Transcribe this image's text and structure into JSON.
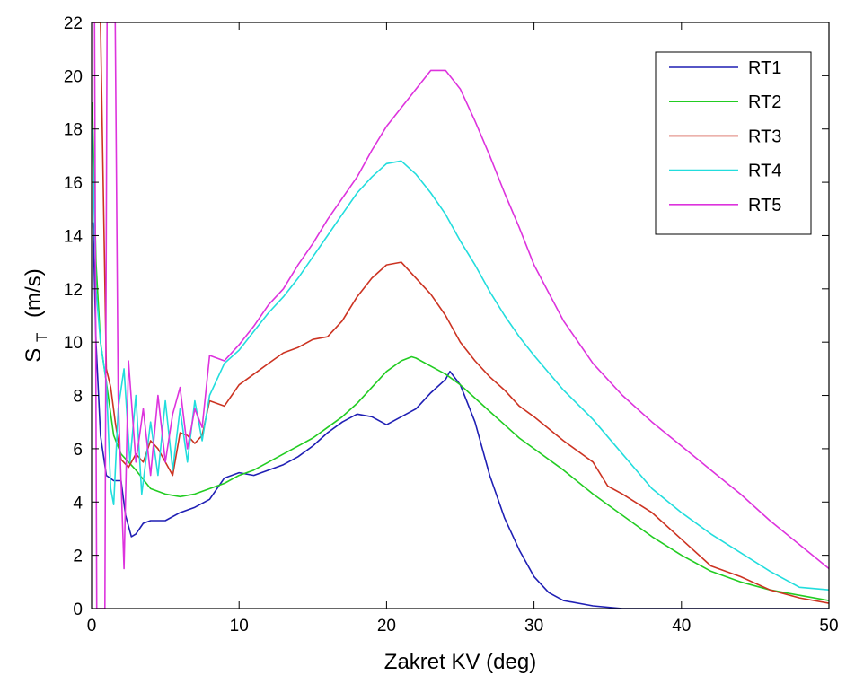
{
  "chart_data": {
    "type": "line",
    "xlabel": "Zakret KV (deg)",
    "ylabel_main": "S",
    "ylabel_sub": "T",
    "ylabel_unit": "(m/s)",
    "xlim": [
      0,
      50
    ],
    "ylim": [
      0,
      22
    ],
    "xticks": [
      0,
      10,
      20,
      30,
      40,
      50
    ],
    "yticks": [
      0,
      2,
      4,
      6,
      8,
      10,
      12,
      14,
      16,
      18,
      20,
      22
    ],
    "grid": false,
    "legend_position": "top-right",
    "series": [
      {
        "name": "RT1",
        "color": "#1f1fb4",
        "points": [
          [
            0.1,
            14.5
          ],
          [
            0.3,
            10
          ],
          [
            0.6,
            6.5
          ],
          [
            1,
            5
          ],
          [
            1.5,
            4.8
          ],
          [
            2,
            4.8
          ],
          [
            2.3,
            3.5
          ],
          [
            2.7,
            2.7
          ],
          [
            3,
            2.8
          ],
          [
            3.5,
            3.2
          ],
          [
            4,
            3.3
          ],
          [
            5,
            3.3
          ],
          [
            6,
            3.6
          ],
          [
            7,
            3.8
          ],
          [
            8,
            4.1
          ],
          [
            9,
            4.9
          ],
          [
            10,
            5.1
          ],
          [
            11,
            5.0
          ],
          [
            12,
            5.2
          ],
          [
            13,
            5.4
          ],
          [
            14,
            5.7
          ],
          [
            15,
            6.1
          ],
          [
            16,
            6.6
          ],
          [
            17,
            7.0
          ],
          [
            18,
            7.3
          ],
          [
            19,
            7.2
          ],
          [
            20,
            6.9
          ],
          [
            21,
            7.2
          ],
          [
            22,
            7.5
          ],
          [
            23,
            8.1
          ],
          [
            24,
            8.6
          ],
          [
            24.3,
            8.9
          ],
          [
            25,
            8.4
          ],
          [
            26,
            7.0
          ],
          [
            27,
            5.0
          ],
          [
            28,
            3.4
          ],
          [
            29,
            2.2
          ],
          [
            30,
            1.2
          ],
          [
            31,
            0.6
          ],
          [
            32,
            0.3
          ],
          [
            34,
            0.1
          ],
          [
            36,
            0.0
          ],
          [
            40,
            0.0
          ],
          [
            45,
            0.0
          ],
          [
            50,
            0.0
          ]
        ]
      },
      {
        "name": "RT2",
        "color": "#22cc22",
        "points": [
          [
            0.05,
            19
          ],
          [
            0.3,
            13
          ],
          [
            0.6,
            10
          ],
          [
            1,
            8.5
          ],
          [
            1.5,
            6.5
          ],
          [
            2,
            5.8
          ],
          [
            3,
            5.2
          ],
          [
            4,
            4.5
          ],
          [
            5,
            4.3
          ],
          [
            6,
            4.2
          ],
          [
            7,
            4.3
          ],
          [
            8,
            4.5
          ],
          [
            9,
            4.7
          ],
          [
            10,
            5.0
          ],
          [
            11,
            5.2
          ],
          [
            12,
            5.5
          ],
          [
            13,
            5.8
          ],
          [
            14,
            6.1
          ],
          [
            15,
            6.4
          ],
          [
            16,
            6.8
          ],
          [
            17,
            7.2
          ],
          [
            18,
            7.7
          ],
          [
            19,
            8.3
          ],
          [
            20,
            8.9
          ],
          [
            21,
            9.3
          ],
          [
            21.7,
            9.45
          ],
          [
            22,
            9.4
          ],
          [
            23,
            9.1
          ],
          [
            24,
            8.8
          ],
          [
            25,
            8.4
          ],
          [
            26,
            7.9
          ],
          [
            27,
            7.4
          ],
          [
            28,
            6.9
          ],
          [
            29,
            6.4
          ],
          [
            30,
            6.0
          ],
          [
            32,
            5.2
          ],
          [
            34,
            4.3
          ],
          [
            36,
            3.5
          ],
          [
            38,
            2.7
          ],
          [
            40,
            2.0
          ],
          [
            42,
            1.4
          ],
          [
            44,
            1.0
          ],
          [
            46,
            0.7
          ],
          [
            48,
            0.5
          ],
          [
            50,
            0.3
          ]
        ]
      },
      {
        "name": "RT3",
        "color": "#cc3322",
        "points": [
          [
            0.1,
            22
          ],
          [
            0.6,
            22
          ],
          [
            1,
            9
          ],
          [
            1.3,
            8.3
          ],
          [
            1.6,
            7.0
          ],
          [
            2,
            5.6
          ],
          [
            2.5,
            5.3
          ],
          [
            3,
            5.8
          ],
          [
            3.5,
            5.5
          ],
          [
            4,
            6.3
          ],
          [
            4.5,
            6.0
          ],
          [
            5,
            5.5
          ],
          [
            5.5,
            5.0
          ],
          [
            6,
            6.6
          ],
          [
            6.5,
            6.5
          ],
          [
            7,
            6.2
          ],
          [
            7.5,
            6.5
          ],
          [
            8,
            7.8
          ],
          [
            9,
            7.6
          ],
          [
            10,
            8.4
          ],
          [
            11,
            8.8
          ],
          [
            12,
            9.2
          ],
          [
            13,
            9.6
          ],
          [
            14,
            9.8
          ],
          [
            15,
            10.1
          ],
          [
            16,
            10.2
          ],
          [
            17,
            10.8
          ],
          [
            18,
            11.7
          ],
          [
            19,
            12.4
          ],
          [
            20,
            12.9
          ],
          [
            21,
            13.0
          ],
          [
            22,
            12.4
          ],
          [
            23,
            11.8
          ],
          [
            24,
            11.0
          ],
          [
            25,
            10.0
          ],
          [
            26,
            9.3
          ],
          [
            27,
            8.7
          ],
          [
            28,
            8.2
          ],
          [
            29,
            7.6
          ],
          [
            30,
            7.2
          ],
          [
            32,
            6.3
          ],
          [
            34,
            5.5
          ],
          [
            35,
            4.6
          ],
          [
            36,
            4.3
          ],
          [
            38,
            3.6
          ],
          [
            40,
            2.6
          ],
          [
            42,
            1.6
          ],
          [
            44,
            1.2
          ],
          [
            46,
            0.7
          ],
          [
            48,
            0.4
          ],
          [
            50,
            0.2
          ]
        ]
      },
      {
        "name": "RT4",
        "color": "#22dddd",
        "points": [
          [
            0.05,
            18
          ],
          [
            0.3,
            12
          ],
          [
            0.6,
            10
          ],
          [
            1,
            8.5
          ],
          [
            1.3,
            4.5
          ],
          [
            1.5,
            3.9
          ],
          [
            1.8,
            7.5
          ],
          [
            2.2,
            9.0
          ],
          [
            2.6,
            5.5
          ],
          [
            3,
            8.0
          ],
          [
            3.4,
            4.3
          ],
          [
            4,
            7.0
          ],
          [
            4.5,
            5.0
          ],
          [
            5,
            7.8
          ],
          [
            5.5,
            5.2
          ],
          [
            6,
            7.5
          ],
          [
            6.5,
            5.5
          ],
          [
            7,
            7.8
          ],
          [
            7.5,
            6.3
          ],
          [
            8,
            8.0
          ],
          [
            9,
            9.2
          ],
          [
            10,
            9.7
          ],
          [
            11,
            10.4
          ],
          [
            12,
            11.1
          ],
          [
            13,
            11.7
          ],
          [
            14,
            12.4
          ],
          [
            15,
            13.2
          ],
          [
            16,
            14.0
          ],
          [
            17,
            14.8
          ],
          [
            18,
            15.6
          ],
          [
            19,
            16.2
          ],
          [
            20,
            16.7
          ],
          [
            21,
            16.8
          ],
          [
            22,
            16.3
          ],
          [
            23,
            15.6
          ],
          [
            24,
            14.8
          ],
          [
            25,
            13.8
          ],
          [
            26,
            12.9
          ],
          [
            27,
            11.9
          ],
          [
            28,
            11.0
          ],
          [
            29,
            10.2
          ],
          [
            30,
            9.5
          ],
          [
            32,
            8.2
          ],
          [
            34,
            7.1
          ],
          [
            36,
            5.8
          ],
          [
            38,
            4.5
          ],
          [
            40,
            3.6
          ],
          [
            42,
            2.8
          ],
          [
            44,
            2.1
          ],
          [
            46,
            1.4
          ],
          [
            48,
            0.8
          ],
          [
            50,
            0.7
          ]
        ]
      },
      {
        "name": "RT5",
        "color": "#dd33dd",
        "points": [
          [
            0.05,
            22
          ],
          [
            0.2,
            22
          ],
          [
            0.35,
            0
          ],
          [
            0.9,
            0
          ],
          [
            1.05,
            22
          ],
          [
            1.6,
            22
          ],
          [
            1.8,
            8.0
          ],
          [
            2.2,
            1.5
          ],
          [
            2.5,
            9.3
          ],
          [
            3,
            5.5
          ],
          [
            3.5,
            7.5
          ],
          [
            4,
            5.0
          ],
          [
            4.5,
            8.0
          ],
          [
            5,
            5.5
          ],
          [
            5.5,
            7.3
          ],
          [
            6,
            8.3
          ],
          [
            6.5,
            6.0
          ],
          [
            7,
            7.5
          ],
          [
            7.5,
            6.8
          ],
          [
            8,
            9.5
          ],
          [
            9,
            9.3
          ],
          [
            10,
            9.9
          ],
          [
            11,
            10.6
          ],
          [
            12,
            11.4
          ],
          [
            13,
            12.0
          ],
          [
            14,
            12.9
          ],
          [
            15,
            13.7
          ],
          [
            16,
            14.6
          ],
          [
            17,
            15.4
          ],
          [
            18,
            16.2
          ],
          [
            19,
            17.2
          ],
          [
            20,
            18.1
          ],
          [
            21,
            18.8
          ],
          [
            22,
            19.5
          ],
          [
            23,
            20.2
          ],
          [
            24,
            20.2
          ],
          [
            25,
            19.5
          ],
          [
            26,
            18.3
          ],
          [
            27,
            17.0
          ],
          [
            28,
            15.6
          ],
          [
            29,
            14.3
          ],
          [
            30,
            12.9
          ],
          [
            32,
            10.8
          ],
          [
            34,
            9.2
          ],
          [
            36,
            8.0
          ],
          [
            38,
            7.0
          ],
          [
            40,
            6.1
          ],
          [
            42,
            5.2
          ],
          [
            44,
            4.3
          ],
          [
            46,
            3.3
          ],
          [
            48,
            2.4
          ],
          [
            50,
            1.5
          ]
        ]
      }
    ]
  }
}
